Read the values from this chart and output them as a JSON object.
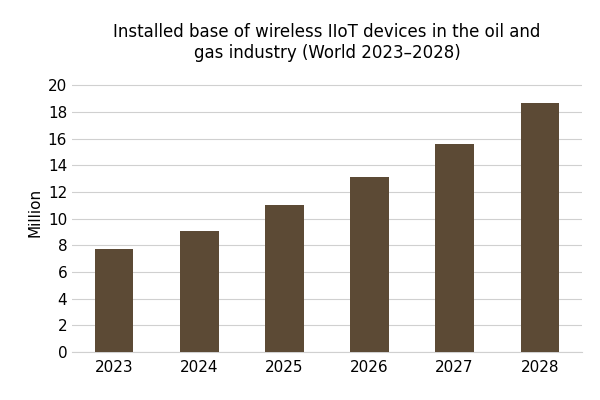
{
  "categories": [
    "2023",
    "2024",
    "2025",
    "2026",
    "2027",
    "2028"
  ],
  "values": [
    7.7,
    9.1,
    11.0,
    13.1,
    15.6,
    18.7
  ],
  "bar_color": "#5c4a35",
  "title_line1": "Installed base of wireless IIoT devices in the oil and",
  "title_line2": "gas industry (World 2023–2028)",
  "ylabel": "Million",
  "ylim": [
    0,
    21
  ],
  "yticks": [
    0,
    2,
    4,
    6,
    8,
    10,
    12,
    14,
    16,
    18,
    20
  ],
  "background_color": "#ffffff",
  "grid_color": "#d0d0d0",
  "title_fontsize": 12,
  "axis_fontsize": 11,
  "tick_fontsize": 11,
  "bar_width": 0.45
}
